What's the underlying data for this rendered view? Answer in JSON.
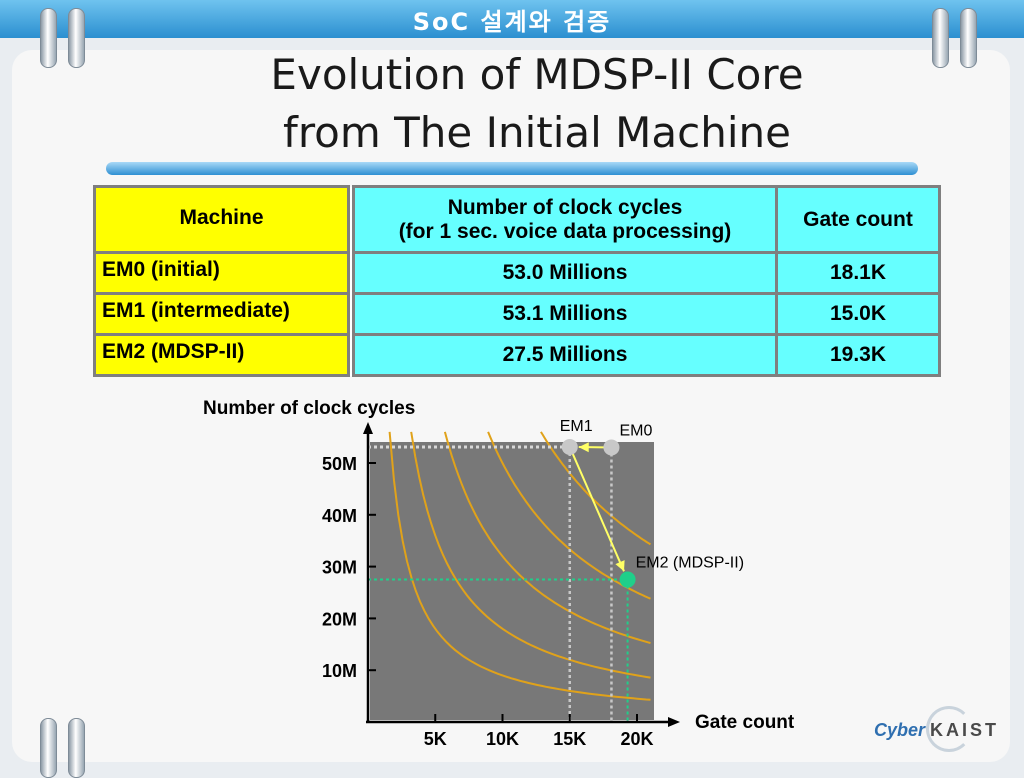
{
  "header": {
    "banner": "SoC 설계와 검증"
  },
  "title": {
    "line1": "Evolution of MDSP-II Core",
    "line2": "from The Initial Machine"
  },
  "table": {
    "headers": {
      "machine": "Machine",
      "cycles_line1": "Number of clock cycles",
      "cycles_line2": "(for 1 sec. voice data processing)",
      "gates": "Gate count"
    },
    "rows": [
      {
        "machine": "EM0 (initial)",
        "cycles": "53.0 Millions",
        "gates": "18.1K"
      },
      {
        "machine": "EM1 (intermediate)",
        "cycles": "53.1 Millions",
        "gates": "15.0K"
      },
      {
        "machine": "EM2 (MDSP-II)",
        "cycles": "27.5 Millions",
        "gates": "19.3K"
      }
    ]
  },
  "chart_data": {
    "type": "scatter",
    "ylabel": "Number of clock cycles",
    "xlabel": "Gate count",
    "x_ticks": [
      "5K",
      "10K",
      "15K",
      "20K"
    ],
    "y_ticks": [
      "10M",
      "20M",
      "30M",
      "40M",
      "50M"
    ],
    "x_tick_values": [
      5,
      10,
      15,
      20
    ],
    "y_tick_values": [
      10,
      20,
      30,
      40,
      50
    ],
    "xlim": [
      0,
      21
    ],
    "ylim": [
      0,
      56
    ],
    "points": [
      {
        "name": "EM0",
        "label": "EM0",
        "x": 18.1,
        "y": 53.0,
        "color": "#c8c8c8"
      },
      {
        "name": "EM1",
        "label": "EM1",
        "x": 15.0,
        "y": 53.1,
        "color": "#c8c8c8"
      },
      {
        "name": "EM2",
        "label": "EM2 (MDSP-II)",
        "x": 19.3,
        "y": 27.5,
        "color": "#1fcf8a"
      }
    ],
    "arrows": [
      [
        "EM0",
        "EM1"
      ],
      [
        "EM1",
        "EM2"
      ]
    ],
    "colors": {
      "plot_bg": "#787878",
      "curve": "#e0a21a",
      "arrow": "#ffff66",
      "guide_em2": "#1fcf8a",
      "guide_em": "#c8c8c8"
    }
  },
  "logo": {
    "cyber": "Cyber",
    "kaist": "KAIST"
  }
}
